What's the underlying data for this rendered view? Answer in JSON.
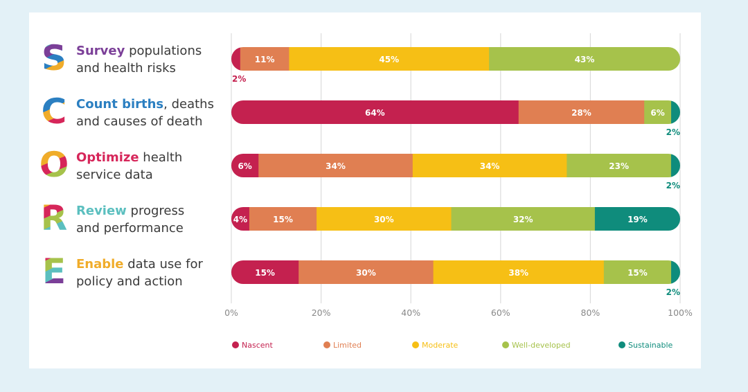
{
  "chart_data": {
    "type": "bar",
    "orientation": "horizontal",
    "stacked": true,
    "categories": [
      {
        "letter": "S",
        "keyword": "Survey",
        "line1_rest": " populations",
        "line2": "and health risks",
        "color": "#7b3f98"
      },
      {
        "letter": "C",
        "keyword": "Count births",
        "line1_rest": ", deaths",
        "line2": "and causes of death",
        "color": "#2b7fc1"
      },
      {
        "letter": "O",
        "keyword": "Optimize",
        "line1_rest": " health",
        "line2": "service data",
        "color": "#d6265a"
      },
      {
        "letter": "R",
        "keyword": "Review",
        "line1_rest": " progress",
        "line2": "and performance",
        "color": "#5bbfbf"
      },
      {
        "letter": "E",
        "keyword": "Enable",
        "line1_rest": " data use for",
        "line2": "policy and action",
        "color": "#f0ac2a"
      }
    ],
    "series": [
      {
        "name": "Nascent",
        "color": "#c4214f",
        "values": [
          2,
          64,
          6,
          4,
          15
        ]
      },
      {
        "name": "Limited",
        "color": "#e07f52",
        "values": [
          11,
          28,
          34,
          15,
          30
        ]
      },
      {
        "name": "Moderate",
        "color": "#f6bf15",
        "values": [
          45,
          0,
          34,
          30,
          38
        ]
      },
      {
        "name": "Well-developed",
        "color": "#a6c24b",
        "values": [
          43,
          6,
          23,
          32,
          15
        ]
      },
      {
        "name": "Sustainable",
        "color": "#0f8c7c",
        "values": [
          0,
          2,
          2,
          19,
          2
        ]
      }
    ],
    "xlim": [
      0,
      100
    ],
    "xticks": [
      "0%",
      "20%",
      "40%",
      "60%",
      "80%",
      "100%"
    ],
    "grid": true,
    "legend": "bottom"
  }
}
